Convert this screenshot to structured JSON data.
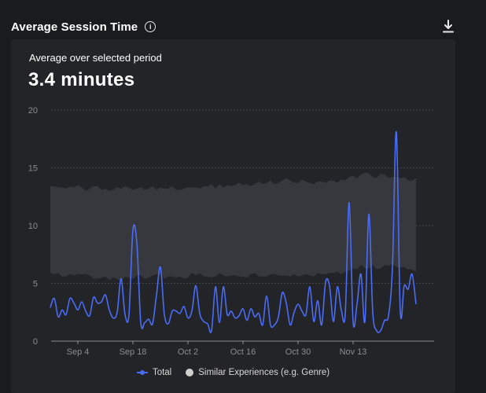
{
  "header": {
    "title": "Average Session Time",
    "info_icon": "info-icon",
    "download_icon": "download-icon"
  },
  "summary": {
    "label": "Average over selected period",
    "value": "3.4 minutes"
  },
  "colors": {
    "total_line": "#4a6cf7",
    "band_fill": "#3a3b3f",
    "grid": "#44464b",
    "axis": "#8a8c91",
    "card_bg": "#232428",
    "page_bg": "#191b1f"
  },
  "chart_data": {
    "type": "line",
    "title": "",
    "xlabel": "",
    "ylabel": "",
    "ylim": [
      0,
      20
    ],
    "yticks": [
      0,
      5,
      10,
      15,
      20
    ],
    "start_date": "2023-08-28",
    "xticks": [
      {
        "date": "2023-09-04",
        "label": "Sep 4"
      },
      {
        "date": "2023-09-18",
        "label": "Sep 18"
      },
      {
        "date": "2023-10-02",
        "label": "Oct 2"
      },
      {
        "date": "2023-10-16",
        "label": "Oct 16"
      },
      {
        "date": "2023-10-30",
        "label": "Oct 30"
      },
      {
        "date": "2023-11-13",
        "label": "Nov 13"
      }
    ],
    "legend": [
      {
        "name": "Total",
        "marker": "line"
      },
      {
        "name": "Similar Experiences (e.g. Genre)",
        "marker": "circle"
      }
    ],
    "series": [
      {
        "name": "Total",
        "values": [
          2.9,
          3.7,
          2.1,
          2.7,
          2.3,
          3.7,
          3.3,
          2.7,
          3.4,
          2.6,
          2.2,
          3.8,
          3.3,
          3.4,
          4.0,
          2.7,
          2.0,
          2.5,
          5.4,
          2.3,
          2.3,
          9.6,
          8.5,
          1.6,
          1.6,
          1.9,
          1.5,
          4.0,
          6.4,
          2.3,
          1.5,
          2.6,
          2.6,
          2.4,
          3.0,
          2.0,
          2.6,
          4.8,
          2.4,
          1.7,
          1.5,
          0.9,
          4.7,
          1.6,
          4.7,
          2.3,
          2.6,
          2.0,
          2.2,
          2.8,
          1.8,
          2.8,
          2.1,
          2.4,
          1.4,
          3.9,
          1.4,
          1.4,
          2.1,
          4.2,
          3.3,
          1.4,
          2.5,
          3.2,
          2.6,
          2.3,
          4.7,
          1.7,
          3.5,
          1.4,
          5.1,
          4.8,
          1.7,
          4.7,
          2.7,
          2.3,
          12.0,
          1.7,
          3.2,
          5.8,
          1.7,
          11.0,
          2.5,
          0.9,
          0.9,
          1.8,
          2.2,
          6.3,
          18.1,
          2.6,
          4.8,
          4.5,
          5.8,
          3.2
        ]
      },
      {
        "name": "Similar Experiences (e.g. Genre)",
        "type": "band",
        "upper": [
          13.4,
          13.4,
          13.3,
          13.3,
          13.2,
          13.4,
          13.3,
          13.5,
          13.3,
          13.0,
          13.2,
          13.4,
          13.4,
          13.1,
          13.2,
          13.0,
          13.1,
          13.3,
          13.2,
          13.4,
          13.3,
          13.1,
          13.2,
          13.3,
          13.1,
          13.2,
          13.4,
          13.1,
          13.3,
          13.2,
          13.2,
          13.4,
          13.1,
          13.1,
          13.2,
          13.3,
          13.3,
          13.3,
          13.2,
          13.4,
          13.4,
          13.6,
          13.2,
          13.6,
          13.3,
          13.5,
          13.4,
          13.5,
          13.7,
          13.5,
          13.6,
          13.4,
          13.6,
          13.8,
          13.6,
          13.7,
          13.9,
          13.6,
          13.7,
          13.9,
          14.1,
          13.9,
          13.7,
          13.7,
          14.0,
          13.8,
          13.7,
          13.6,
          13.8,
          13.8,
          13.7,
          13.9,
          13.9,
          13.7,
          14.0,
          13.9,
          14.2,
          14.3,
          14.1,
          14.4,
          14.6,
          14.5,
          14.2,
          14.1,
          14.5,
          14.4,
          14.1,
          14.2,
          14.2,
          14.1,
          14.2,
          13.9,
          13.9,
          14.1
        ],
        "lower": [
          5.9,
          5.8,
          5.9,
          5.6,
          5.6,
          5.8,
          5.7,
          5.8,
          5.8,
          5.8,
          5.7,
          5.4,
          5.4,
          5.5,
          5.6,
          5.3,
          5.5,
          5.4,
          5.2,
          5.6,
          5.5,
          5.4,
          5.7,
          5.7,
          5.4,
          5.5,
          5.7,
          5.8,
          5.8,
          5.4,
          5.6,
          5.6,
          5.5,
          5.6,
          5.4,
          5.5,
          5.9,
          5.7,
          5.9,
          5.6,
          5.6,
          5.5,
          5.6,
          5.9,
          5.7,
          5.6,
          5.7,
          5.7,
          5.6,
          5.6,
          5.5,
          5.8,
          5.9,
          5.6,
          5.6,
          5.6,
          5.8,
          5.8,
          5.7,
          5.7,
          5.7,
          5.6,
          5.8,
          5.6,
          5.7,
          5.8,
          5.7,
          5.6,
          5.9,
          5.8,
          5.8,
          5.9,
          5.9,
          6.0,
          5.8,
          6.0,
          6.1,
          6.3,
          6.2,
          6.6,
          6.3,
          6.3,
          6.6,
          6.2,
          6.3,
          6.6,
          6.5,
          6.7,
          6.4,
          6.4,
          6.4,
          6.2,
          6.2,
          6.0
        ]
      }
    ]
  }
}
